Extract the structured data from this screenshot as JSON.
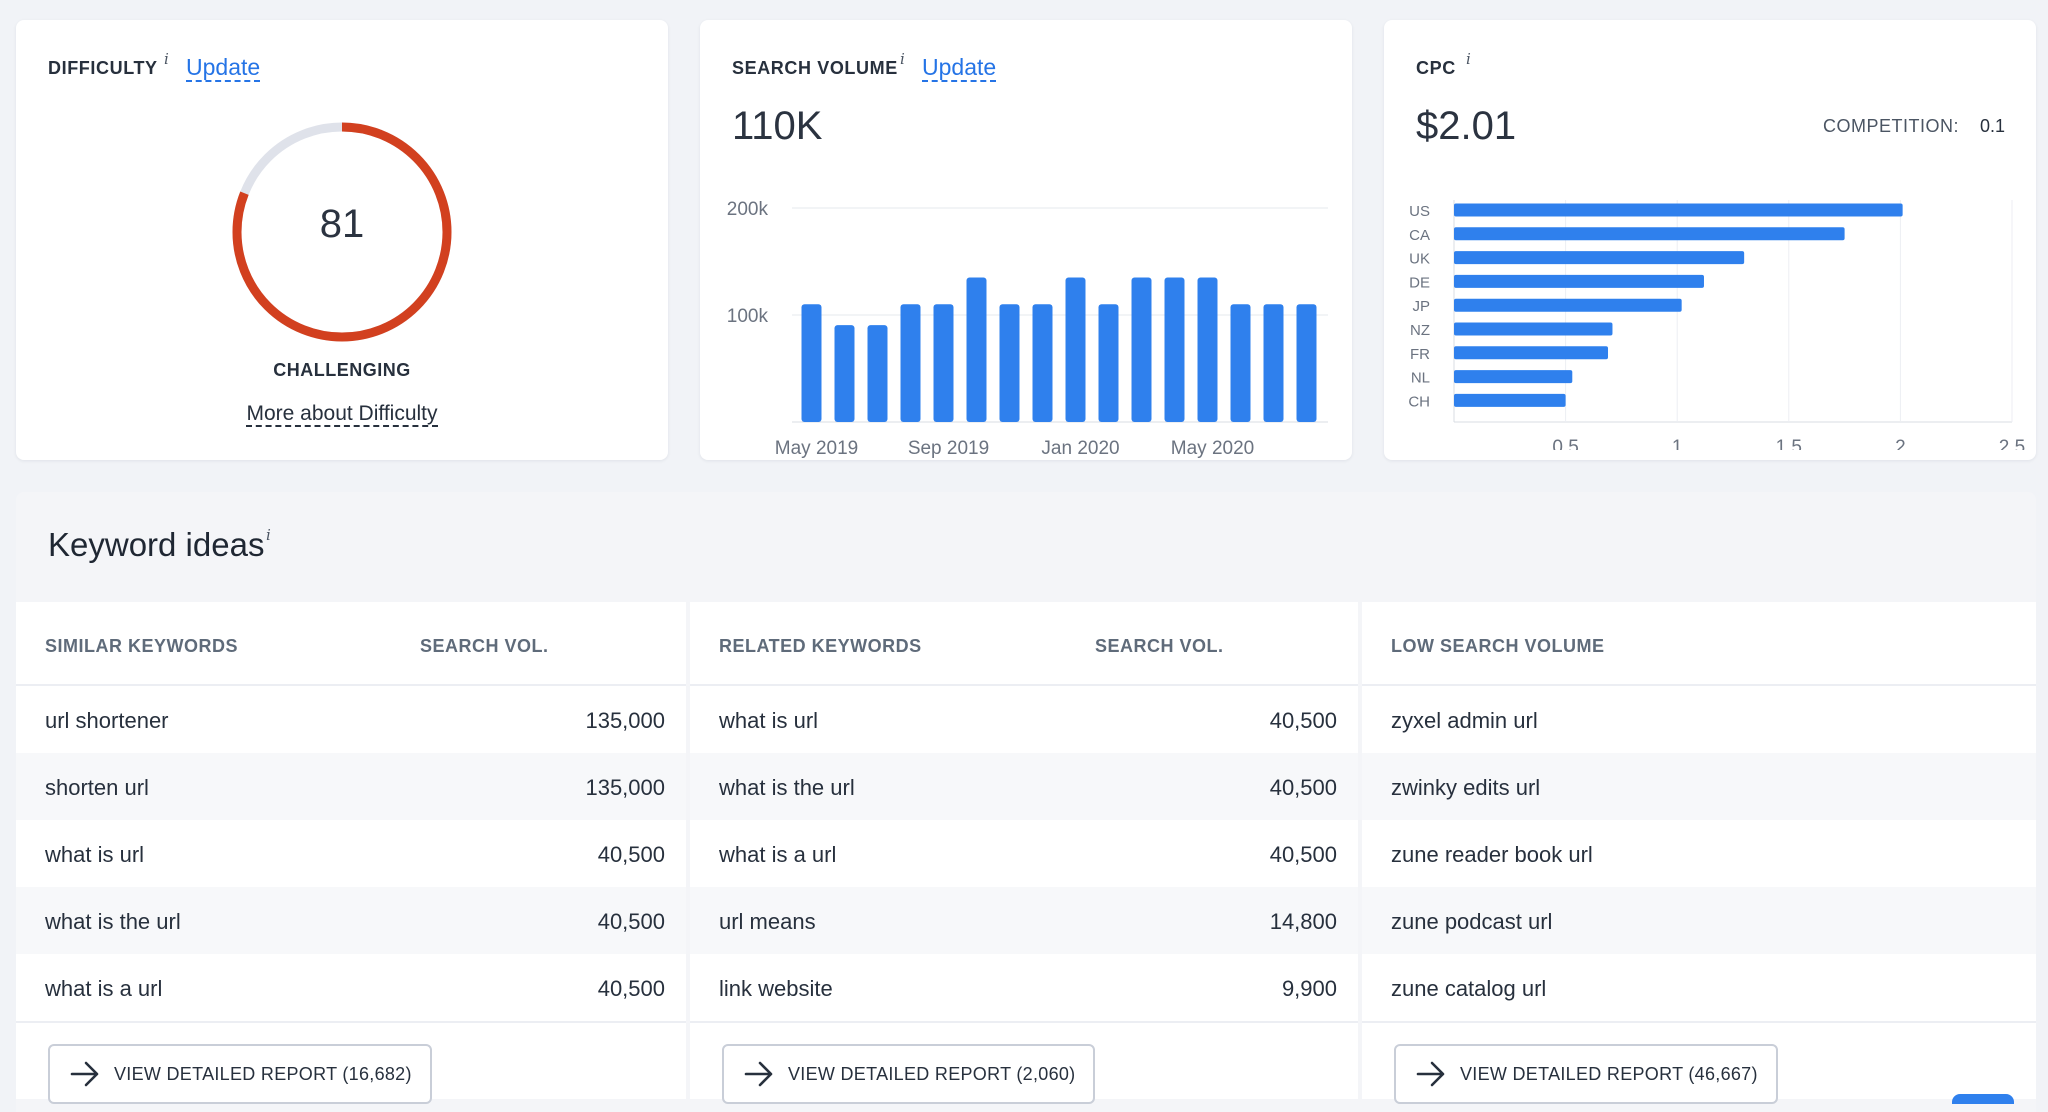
{
  "difficulty": {
    "label": "DIFFICULTY",
    "info": "i",
    "update": "Update",
    "score": "81",
    "score_value": 81,
    "level": "CHALLENGING",
    "more_link": "More about Difficulty",
    "colors": {
      "track": "#dfe2ea",
      "fill": "#d2401f"
    }
  },
  "search_volume": {
    "label": "SEARCH VOLUME",
    "info": "i",
    "update": "Update",
    "value": "110K",
    "chart_data": {
      "type": "bar",
      "title": "",
      "xlabel": "",
      "ylabel": "",
      "ylim": [
        0,
        200000
      ],
      "y_ticks": [
        {
          "value": 100000,
          "label": "100k"
        },
        {
          "value": 200000,
          "label": "200k"
        }
      ],
      "x_tick_labels": [
        {
          "index": 0,
          "label": "May 2019"
        },
        {
          "index": 4,
          "label": "Sep 2019"
        },
        {
          "index": 8,
          "label": "Jan 2020"
        },
        {
          "index": 12,
          "label": "May 2020"
        }
      ],
      "categories": [
        "May 2019",
        "Jun 2019",
        "Jul 2019",
        "Aug 2019",
        "Sep 2019",
        "Oct 2019",
        "Nov 2019",
        "Dec 2019",
        "Jan 2020",
        "Feb 2020",
        "Mar 2020",
        "Apr 2020",
        "May 2020",
        "Jun 2020",
        "Jul 2020",
        "Aug 2020"
      ],
      "values": [
        110000,
        90500,
        90500,
        110000,
        110000,
        135000,
        110000,
        110000,
        135000,
        110000,
        135000,
        135000,
        135000,
        110000,
        110000,
        110000
      ],
      "color": "#2f80ed"
    }
  },
  "cpc": {
    "label": "CPC",
    "info": "i",
    "value": "$2.01",
    "competition_label": "COMPETITION:",
    "competition_value": "0.1",
    "chart_data": {
      "type": "bar",
      "orientation": "horizontal",
      "categories": [
        "US",
        "CA",
        "UK",
        "DE",
        "JP",
        "NZ",
        "FR",
        "NL",
        "CH"
      ],
      "values": [
        2.01,
        1.75,
        1.3,
        1.12,
        1.02,
        0.71,
        0.69,
        0.53,
        0.5
      ],
      "xlim": [
        0,
        2.5
      ],
      "x_ticks": [
        {
          "value": 0.5,
          "label": "0.5"
        },
        {
          "value": 1,
          "label": "1"
        },
        {
          "value": 1.5,
          "label": "1.5"
        },
        {
          "value": 2,
          "label": "2"
        },
        {
          "value": 2.5,
          "label": "2.5"
        }
      ],
      "color": "#2f80ed"
    }
  },
  "keyword_ideas": {
    "title": "Keyword ideas",
    "info": "i",
    "columns": [
      {
        "header": "SIMILAR KEYWORDS",
        "vol_header": "SEARCH VOL.",
        "rows": [
          {
            "keyword": "url shortener",
            "volume": "135,000"
          },
          {
            "keyword": "shorten url",
            "volume": "135,000"
          },
          {
            "keyword": "what is url",
            "volume": "40,500"
          },
          {
            "keyword": "what is the url",
            "volume": "40,500"
          },
          {
            "keyword": "what is a url",
            "volume": "40,500"
          }
        ],
        "button": "VIEW DETAILED REPORT (16,682)"
      },
      {
        "header": "RELATED KEYWORDS",
        "vol_header": "SEARCH VOL.",
        "rows": [
          {
            "keyword": "what is url",
            "volume": "40,500"
          },
          {
            "keyword": "what is the url",
            "volume": "40,500"
          },
          {
            "keyword": "what is a url",
            "volume": "40,500"
          },
          {
            "keyword": "url means",
            "volume": "14,800"
          },
          {
            "keyword": "link website",
            "volume": "9,900"
          }
        ],
        "button": "VIEW DETAILED REPORT (2,060)"
      },
      {
        "header": "LOW SEARCH VOLUME",
        "vol_header": "",
        "rows": [
          {
            "keyword": "zyxel admin url",
            "volume": ""
          },
          {
            "keyword": "zwinky edits url",
            "volume": ""
          },
          {
            "keyword": "zune reader book url",
            "volume": ""
          },
          {
            "keyword": "zune podcast url",
            "volume": ""
          },
          {
            "keyword": "zune catalog url",
            "volume": ""
          }
        ],
        "button": "VIEW DETAILED REPORT (46,667)"
      }
    ]
  }
}
